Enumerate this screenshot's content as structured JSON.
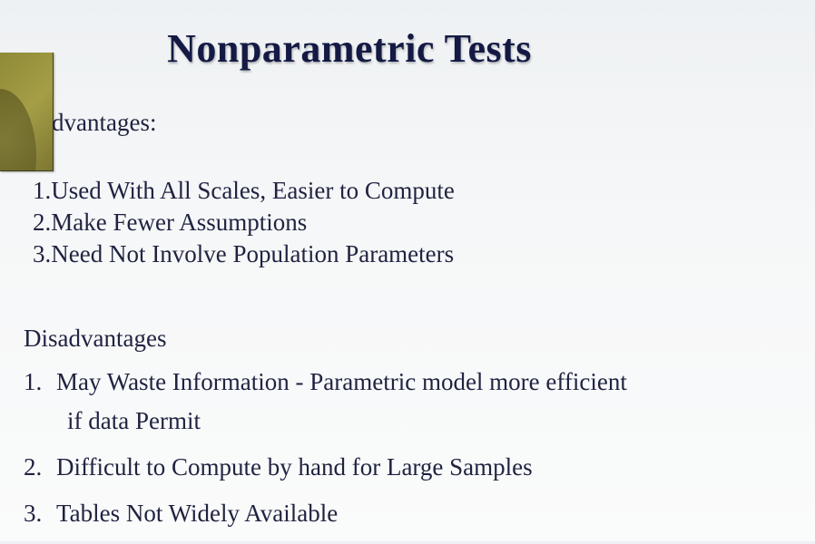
{
  "slide": {
    "title": "Nonparametric Tests",
    "advantages": {
      "heading": "dvantages:",
      "items": [
        "1.Used With All Scales, Easier to Compute",
        "2.Make Fewer Assumptions",
        "3.Need Not Involve Population Parameters"
      ]
    },
    "disadvantages": {
      "heading": "Disadvantages",
      "items": [
        {
          "num": "1.",
          "text": "May Waste Information - Parametric model more efficient",
          "cont": "if data Permit"
        },
        {
          "num": "2.",
          "text": "Difficult to Compute by hand for Large Samples"
        },
        {
          "num": "3.",
          "text": "Tables Not Widely Available"
        }
      ]
    }
  }
}
